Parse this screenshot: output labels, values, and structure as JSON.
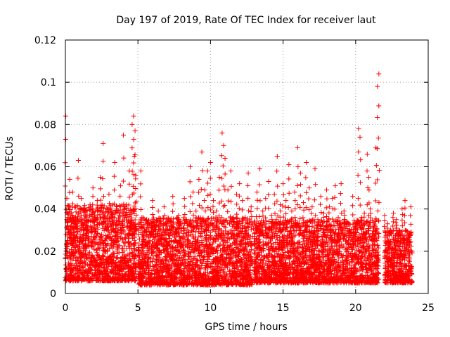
{
  "chart_data": {
    "type": "scatter",
    "title": "Day 197 of 2019, Rate Of TEC Index for receiver laut",
    "xlabel": "GPS time / hours",
    "ylabel": "ROTI / TECUs",
    "xlim": [
      0,
      25
    ],
    "ylim": [
      0,
      0.12
    ],
    "xticks": [
      0,
      5,
      10,
      15,
      20,
      25
    ],
    "xtick_labels": [
      "0",
      "5",
      "10",
      "15",
      "20",
      "25"
    ],
    "yticks": [
      0,
      0.02,
      0.04,
      0.06,
      0.08,
      0.1,
      0.12
    ],
    "ytick_labels": [
      "0",
      "0.02",
      "0.04",
      "0.06",
      "0.08",
      "0.1",
      "0.12"
    ],
    "grid": true,
    "marker": "+",
    "color": "#ff0000",
    "series": [
      {
        "name": "ROTI",
        "x": [
          0.02,
          0.1,
          0.2,
          0.3,
          0.4,
          0.5,
          0.6,
          0.7,
          0.8,
          0.9,
          1.0,
          1.1,
          1.2,
          1.3,
          1.4,
          1.5,
          1.6,
          1.7,
          1.8,
          1.9,
          2.0,
          2.2,
          2.4,
          2.6,
          2.8,
          3.0,
          3.2,
          3.4,
          3.6,
          3.8,
          4.0,
          4.2,
          4.4,
          4.6,
          4.7,
          4.75,
          4.8,
          4.85,
          5.2,
          5.4,
          5.6,
          5.8,
          6.0,
          6.2,
          6.4,
          6.6,
          6.8,
          7.0,
          7.2,
          7.4,
          7.6,
          7.8,
          8.0,
          8.2,
          8.4,
          8.6,
          8.8,
          9.0,
          9.2,
          9.4,
          9.6,
          9.8,
          10.0,
          10.2,
          10.4,
          10.6,
          10.8,
          10.9,
          11.0,
          11.2,
          11.4,
          11.6,
          11.8,
          12.0,
          12.2,
          12.4,
          12.6,
          12.8,
          13.0,
          13.2,
          13.4,
          13.6,
          13.8,
          14.0,
          14.2,
          14.4,
          14.6,
          14.8,
          15.0,
          15.2,
          15.4,
          15.6,
          15.8,
          16.0,
          16.2,
          16.4,
          16.6,
          16.8,
          17.0,
          17.2,
          17.4,
          17.6,
          17.8,
          18.0,
          18.2,
          18.4,
          18.6,
          18.8,
          19.0,
          19.2,
          19.4,
          19.6,
          19.8,
          20.0,
          20.2,
          20.3,
          20.4,
          20.6,
          20.8,
          20.9,
          21.0,
          21.2,
          21.4,
          21.5,
          21.6,
          22.0,
          22.2,
          22.4,
          22.6,
          22.8,
          23.0,
          23.2,
          23.4,
          23.6,
          23.8
        ],
        "y": [
          0.084,
          0.045,
          0.038,
          0.054,
          0.032,
          0.048,
          0.028,
          0.041,
          0.035,
          0.063,
          0.03,
          0.045,
          0.025,
          0.039,
          0.022,
          0.034,
          0.027,
          0.042,
          0.031,
          0.05,
          0.036,
          0.044,
          0.055,
          0.071,
          0.033,
          0.047,
          0.039,
          0.062,
          0.029,
          0.051,
          0.075,
          0.042,
          0.058,
          0.08,
          0.084,
          0.065,
          0.077,
          0.056,
          0.058,
          0.028,
          0.035,
          0.022,
          0.044,
          0.031,
          0.039,
          0.026,
          0.041,
          0.018,
          0.03,
          0.046,
          0.025,
          0.037,
          0.022,
          0.045,
          0.033,
          0.06,
          0.048,
          0.039,
          0.054,
          0.067,
          0.049,
          0.058,
          0.062,
          0.044,
          0.039,
          0.055,
          0.076,
          0.07,
          0.064,
          0.049,
          0.058,
          0.036,
          0.047,
          0.052,
          0.044,
          0.036,
          0.057,
          0.041,
          0.033,
          0.048,
          0.059,
          0.039,
          0.045,
          0.053,
          0.037,
          0.047,
          0.065,
          0.042,
          0.052,
          0.044,
          0.061,
          0.039,
          0.048,
          0.069,
          0.057,
          0.043,
          0.062,
          0.05,
          0.041,
          0.059,
          0.035,
          0.046,
          0.038,
          0.049,
          0.041,
          0.045,
          0.051,
          0.036,
          0.052,
          0.039,
          0.034,
          0.03,
          0.046,
          0.033,
          0.078,
          0.074,
          0.036,
          0.038,
          0.066,
          0.055,
          0.04,
          0.031,
          0.069,
          0.098,
          0.104,
          0.037,
          0.033,
          0.03,
          0.038,
          0.035,
          0.03,
          0.04,
          0.044,
          0.028,
          0.041
        ],
        "dense_band": [
          {
            "x_from": 0.0,
            "x_to": 4.9,
            "y_from": 0.006,
            "y_to": 0.042
          },
          {
            "x_from": 5.0,
            "x_to": 12.9,
            "y_from": 0.004,
            "y_to": 0.036
          },
          {
            "x_from": 13.0,
            "x_to": 21.6,
            "y_from": 0.005,
            "y_to": 0.035
          },
          {
            "x_from": 22.0,
            "x_to": 23.9,
            "y_from": 0.005,
            "y_to": 0.03
          }
        ]
      }
    ]
  }
}
